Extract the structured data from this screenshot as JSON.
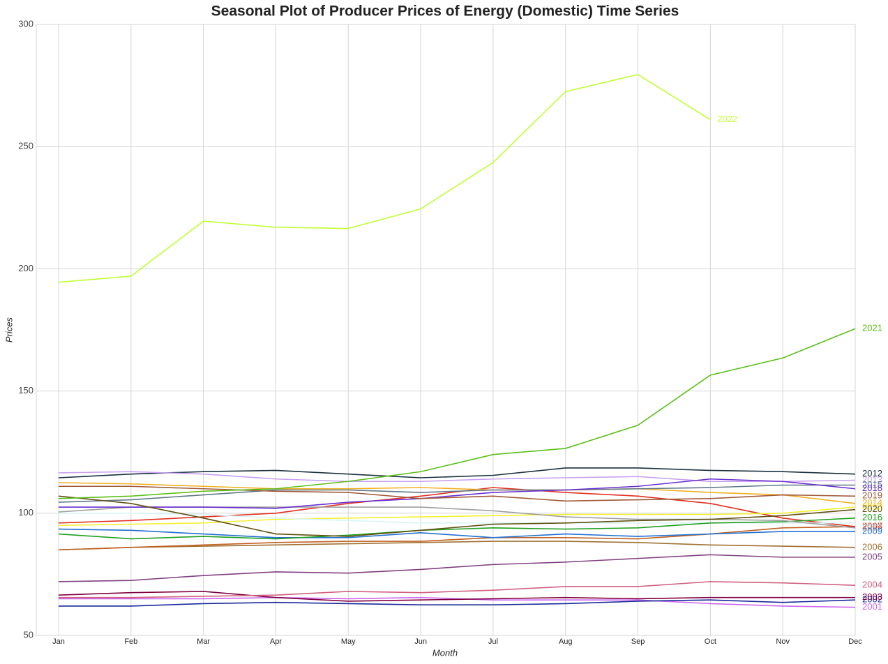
{
  "chart_data": {
    "type": "line",
    "title": "Seasonal Plot of Producer Prices of Energy (Domestic) Time Series",
    "x_label": "Month",
    "y_label": "Prices",
    "categories": [
      "Jan",
      "Feb",
      "Mar",
      "Apr",
      "May",
      "Jun",
      "Jul",
      "Aug",
      "Sep",
      "Oct",
      "Nov",
      "Dec"
    ],
    "ylim": [
      50,
      300
    ],
    "yticks": [
      50,
      100,
      150,
      200,
      250,
      300
    ],
    "grid": true,
    "series": [
      {
        "name": "2001",
        "color": "#cc66ee",
        "values": [
          65,
          65,
          65,
          65.5,
          65,
          65.5,
          64.5,
          64.5,
          64.5,
          63,
          62,
          61.5
        ]
      },
      {
        "name": "2002",
        "color": "#1a2a9a",
        "values": [
          62,
          62,
          63,
          63.5,
          63,
          62.5,
          62.5,
          63,
          64,
          64.5,
          63.5,
          64.5
        ]
      },
      {
        "name": "2003",
        "color": "#800040",
        "values": [
          66.5,
          67.5,
          68,
          65.5,
          64,
          64.5,
          65,
          65.5,
          65,
          65.5,
          65.5,
          65.5
        ]
      },
      {
        "name": "2004",
        "color": "#d06080",
        "values": [
          65.5,
          65.5,
          66,
          66.5,
          68,
          67.5,
          68.5,
          70,
          70,
          72,
          71.5,
          70.5
        ]
      },
      {
        "name": "2005",
        "color": "#804080",
        "values": [
          72,
          72.5,
          74.5,
          76,
          75.5,
          77,
          79,
          80,
          81.5,
          83,
          82,
          82
        ]
      },
      {
        "name": "2006",
        "color": "#a07030",
        "values": [
          85,
          86,
          86.5,
          87,
          87.5,
          88,
          88.5,
          88.5,
          88,
          87,
          86.5,
          86
        ]
      },
      {
        "name": "2007",
        "color": "#c06020",
        "values": [
          85,
          86,
          87,
          88,
          88.5,
          88.5,
          90,
          90,
          89.5,
          91.5,
          94,
          94.5
        ]
      },
      {
        "name": "2008",
        "color": "#e03020",
        "values": [
          96,
          97,
          98.5,
          100,
          104,
          107,
          110.5,
          108.5,
          107,
          104,
          98,
          94.5
        ]
      },
      {
        "name": "2009",
        "color": "#2070d0",
        "values": [
          93.5,
          93,
          91.5,
          90,
          90,
          92,
          90,
          91.5,
          90.5,
          91.5,
          92.5,
          92.5
        ]
      },
      {
        "name": "2010",
        "color": "#f5f030",
        "values": [
          95,
          95.5,
          96,
          97.5,
          98,
          98.5,
          99,
          99.5,
          99.5,
          99.5,
          100,
          102.5
        ]
      },
      {
        "name": "2011",
        "color": "#d8f4f4",
        "values": [
          100,
          100,
          99.5,
          98,
          97,
          96,
          96,
          96,
          96,
          96,
          96,
          96
        ]
      },
      {
        "name": "2012",
        "color": "#1a3040",
        "values": [
          114.5,
          116,
          117,
          117.5,
          116,
          114.5,
          115.5,
          118.5,
          118.5,
          117.5,
          117,
          116
        ]
      },
      {
        "name": "2013",
        "color": "#c8a0f0",
        "values": [
          116.5,
          117,
          116,
          114,
          113,
          113,
          114,
          114.5,
          115,
          113,
          113,
          113.5
        ]
      },
      {
        "name": "2014",
        "color": "#f0b020",
        "values": [
          112.5,
          112,
          111,
          110,
          110,
          110.5,
          109.5,
          109.5,
          110,
          108.5,
          107.5,
          104
        ]
      },
      {
        "name": "2015",
        "color": "#607888",
        "values": [
          104.5,
          105.5,
          107.5,
          109.5,
          109.5,
          108.5,
          109.5,
          109.5,
          110,
          110.5,
          111.5,
          111.5
        ]
      },
      {
        "name": "2016",
        "color": "#20a020",
        "values": [
          91.5,
          89.5,
          90.5,
          89.5,
          91,
          93,
          94,
          93.5,
          94,
          96,
          96.5,
          98
        ]
      },
      {
        "name": "2017",
        "color": "#a0a0a0",
        "values": [
          100.5,
          102.5,
          102.5,
          102.5,
          102.5,
          102.5,
          101,
          98.5,
          97.5,
          97.5,
          97,
          94
        ]
      },
      {
        "name": "2018",
        "color": "#6a2fd0",
        "values": [
          102.5,
          102.5,
          102.5,
          102,
          104.5,
          106,
          108.5,
          109.5,
          111,
          114,
          113,
          110
        ]
      },
      {
        "name": "2019",
        "color": "#a05a3a",
        "values": [
          111,
          111,
          110,
          109,
          108.5,
          106,
          107,
          105,
          105.5,
          106,
          107.5,
          107
        ]
      },
      {
        "name": "2020",
        "color": "#605010",
        "values": [
          107,
          104,
          98,
          91.5,
          90.5,
          93,
          95.5,
          96,
          97,
          97.5,
          99,
          101.5
        ]
      },
      {
        "name": "2021",
        "color": "#5cbf1a",
        "values": [
          106,
          107,
          109,
          110,
          113,
          117,
          124,
          126.5,
          136,
          156.5,
          163.5,
          175.5
        ]
      },
      {
        "name": "2022",
        "color": "#c0ff33",
        "values": [
          194.5,
          197,
          219.5,
          217,
          216.5,
          224.5,
          243.5,
          272.5,
          279.5,
          261,
          null,
          null
        ]
      }
    ]
  }
}
